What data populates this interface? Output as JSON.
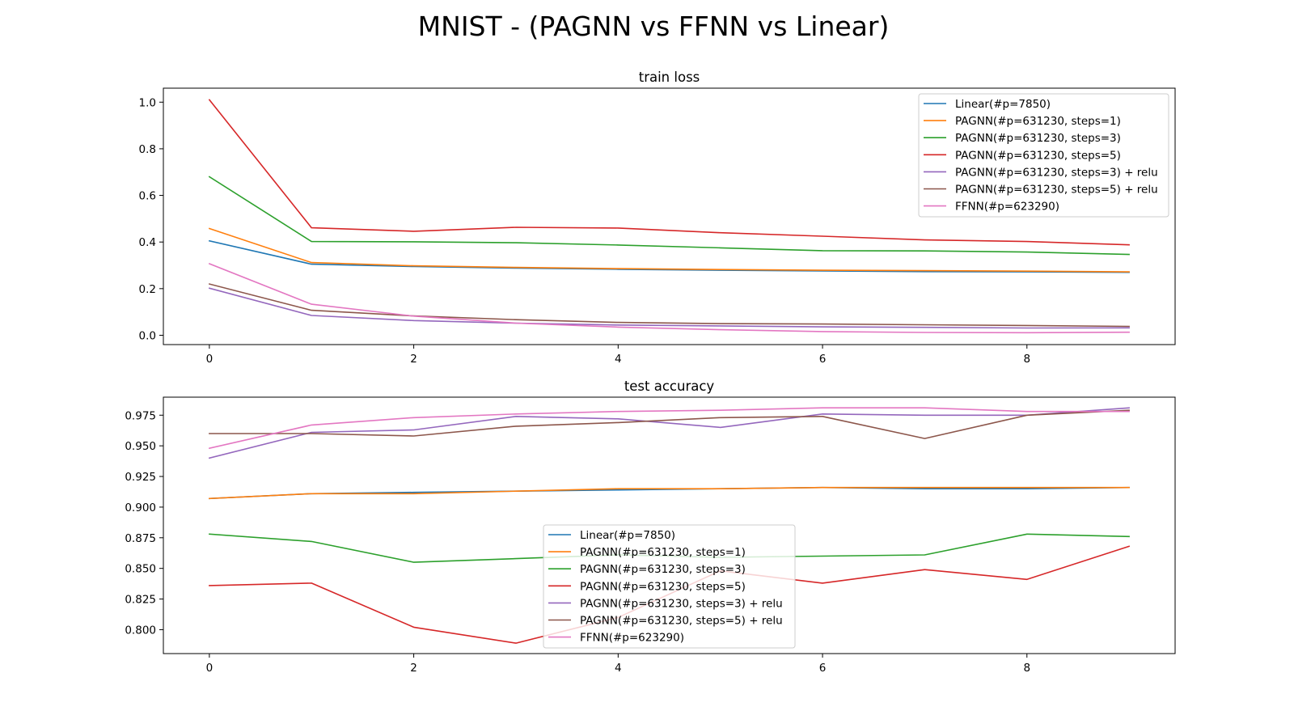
{
  "figure_title": "MNIST - (PAGNN vs FFNN vs Linear)",
  "chart_data": [
    {
      "type": "line",
      "title": "train loss",
      "xlabel": "",
      "ylabel": "",
      "x": [
        0,
        1,
        2,
        3,
        4,
        5,
        6,
        7,
        8,
        9
      ],
      "xlim": [
        -0.45,
        9.45
      ],
      "ylim": [
        -0.04,
        1.06
      ],
      "xticks": [
        "0",
        "2",
        "4",
        "6",
        "8"
      ],
      "yticks": [
        "0.0",
        "0.2",
        "0.4",
        "0.6",
        "0.8",
        "1.0"
      ],
      "grid": false,
      "legend_position": "upper right",
      "series": [
        {
          "name": "Linear(#p=7850)",
          "color": "#1f77b4",
          "values": [
            0.405,
            0.305,
            0.295,
            0.288,
            0.283,
            0.279,
            0.276,
            0.273,
            0.272,
            0.27
          ]
        },
        {
          "name": "PAGNN(#p=631230, steps=1)",
          "color": "#ff7f0e",
          "values": [
            0.458,
            0.312,
            0.298,
            0.291,
            0.286,
            0.282,
            0.279,
            0.277,
            0.275,
            0.272
          ]
        },
        {
          "name": "PAGNN(#p=631230, steps=3)",
          "color": "#2ca02c",
          "values": [
            0.68,
            0.402,
            0.401,
            0.397,
            0.387,
            0.375,
            0.363,
            0.362,
            0.357,
            0.347
          ]
        },
        {
          "name": "PAGNN(#p=631230, steps=5)",
          "color": "#d62728",
          "values": [
            1.01,
            0.461,
            0.446,
            0.463,
            0.46,
            0.44,
            0.425,
            0.409,
            0.402,
            0.388
          ]
        },
        {
          "name": "PAGNN(#p=631230, steps=3) + relu",
          "color": "#9467bd",
          "values": [
            0.202,
            0.085,
            0.063,
            0.052,
            0.044,
            0.04,
            0.036,
            0.034,
            0.031,
            0.032
          ]
        },
        {
          "name": "PAGNN(#p=631230, steps=5) + relu",
          "color": "#8c564b",
          "values": [
            0.22,
            0.107,
            0.083,
            0.067,
            0.055,
            0.05,
            0.048,
            0.045,
            0.042,
            0.038
          ]
        },
        {
          "name": "FFNN(#p=623290)",
          "color": "#e377c2",
          "values": [
            0.307,
            0.133,
            0.082,
            0.052,
            0.035,
            0.024,
            0.016,
            0.012,
            0.011,
            0.013
          ]
        }
      ]
    },
    {
      "type": "line",
      "title": "test accuracy",
      "xlabel": "",
      "ylabel": "",
      "x": [
        0,
        1,
        2,
        3,
        4,
        5,
        6,
        7,
        8,
        9
      ],
      "xlim": [
        -0.45,
        9.45
      ],
      "ylim": [
        0.7805,
        0.9897
      ],
      "xticks": [
        "0",
        "2",
        "4",
        "6",
        "8"
      ],
      "yticks": [
        "0.800",
        "0.825",
        "0.850",
        "0.875",
        "0.900",
        "0.925",
        "0.950",
        "0.975"
      ],
      "grid": false,
      "legend_position": "lower center",
      "series": [
        {
          "name": "Linear(#p=7850)",
          "color": "#1f77b4",
          "values": [
            0.907,
            0.911,
            0.912,
            0.913,
            0.914,
            0.915,
            0.916,
            0.915,
            0.915,
            0.916
          ]
        },
        {
          "name": "PAGNN(#p=631230, steps=1)",
          "color": "#ff7f0e",
          "values": [
            0.907,
            0.911,
            0.911,
            0.913,
            0.915,
            0.915,
            0.916,
            0.916,
            0.916,
            0.916
          ]
        },
        {
          "name": "PAGNN(#p=631230, steps=3)",
          "color": "#2ca02c",
          "values": [
            0.878,
            0.872,
            0.855,
            0.858,
            0.861,
            0.859,
            0.86,
            0.861,
            0.878,
            0.876
          ]
        },
        {
          "name": "PAGNN(#p=631230, steps=5)",
          "color": "#d62728",
          "values": [
            0.836,
            0.838,
            0.802,
            0.789,
            0.81,
            0.848,
            0.838,
            0.849,
            0.841,
            0.868
          ]
        },
        {
          "name": "PAGNN(#p=631230, steps=3) + relu",
          "color": "#9467bd",
          "values": [
            0.94,
            0.961,
            0.963,
            0.974,
            0.972,
            0.965,
            0.976,
            0.975,
            0.975,
            0.981
          ]
        },
        {
          "name": "PAGNN(#p=631230, steps=5) + relu",
          "color": "#8c564b",
          "values": [
            0.96,
            0.96,
            0.958,
            0.966,
            0.969,
            0.973,
            0.974,
            0.956,
            0.975,
            0.979
          ]
        },
        {
          "name": "FFNN(#p=623290)",
          "color": "#e377c2",
          "values": [
            0.948,
            0.967,
            0.973,
            0.976,
            0.978,
            0.979,
            0.981,
            0.981,
            0.978,
            0.978
          ]
        }
      ]
    }
  ]
}
